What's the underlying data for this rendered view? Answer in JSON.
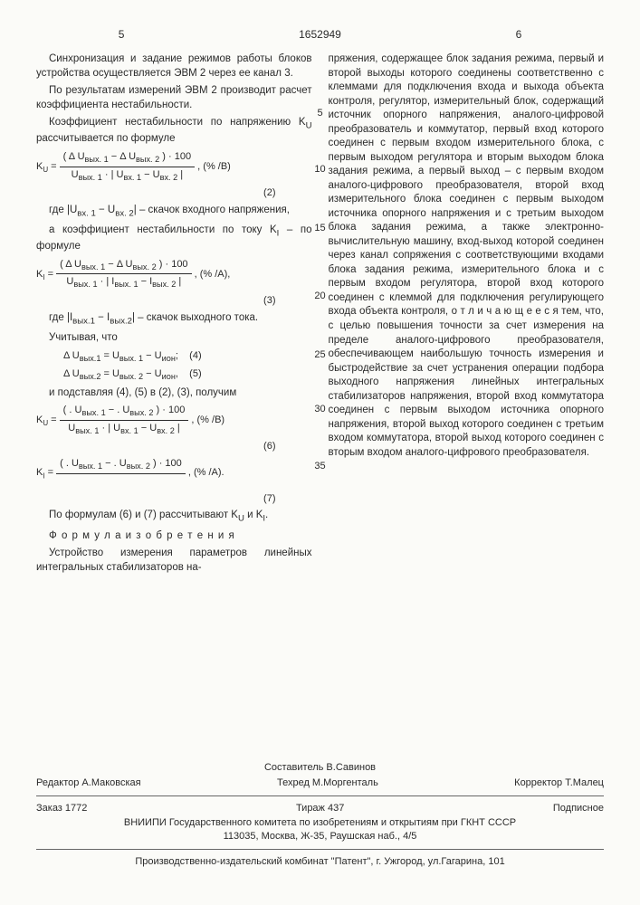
{
  "doc_number": "1652949",
  "col_left_num": "5",
  "col_right_num": "6",
  "line_marks": {
    "l5": "5",
    "l10": "10",
    "l15": "15",
    "l20": "20",
    "l25": "25",
    "l30": "30",
    "l35": "35"
  },
  "left": {
    "p1": "Синхронизация и задание режимов работы блоков устройства осуществляется ЭВМ 2 через ее канал 3.",
    "p2": "По результатам измерений ЭВМ 2 производит расчет коэффициента нестабильности.",
    "p3": "Коэффициент нестабильности по напряжению K<sub>U</sub> рассчитывается по формуле",
    "f2_lhs": "K",
    "f2_sub": "U",
    "f2_eq": " = ",
    "f2_num": "( Δ U<sub>вых. 1</sub> − Δ U<sub>вых. 2</sub> ) · 100",
    "f2_den": "U<sub>вых. 1</sub> · | U<sub>вх. 1</sub> − U<sub>вх. 2</sub> |",
    "f2_tail": " , (% /В)",
    "f2_no": "(2)",
    "p4": "где |U<sub>вх. 1</sub> − U<sub>вх. 2</sub>| – скачок входного напряжения,",
    "p5": "а коэффициент нестабильности по току K<sub>I</sub> – по формуле",
    "f3_sub": "I",
    "f3_num": "( Δ U<sub>вых. 1</sub> − Δ U<sub>вых. 2</sub> ) · 100",
    "f3_den": "U<sub>вых. 1</sub> · | I<sub>вых. 1</sub> − I<sub>вых. 2</sub> |",
    "f3_tail": " , (% /А),",
    "f3_no": "(3)",
    "p6": "где |I<sub>вых.1</sub> − I<sub>вых.2</sub>| – скачок выходного тока.",
    "p7": "Учитывая, что",
    "f4": "Δ U<sub>вых.1</sub> = U<sub>вых. 1</sub> − U<sub>ион</sub>;",
    "f4_no": "(4)",
    "f5": "Δ U<sub>вых.2</sub> = U<sub>вых. 2</sub> − U<sub>ион</sub>,",
    "f5_no": "(5)",
    "p8": "и подставляя (4), (5) в (2), (3), получим",
    "f6_num": "( . U<sub>вых. 1</sub> − . U<sub>вых. 2</sub> ) · 100",
    "f6_den": "U<sub>вых. 1</sub> · | U<sub>вх. 1</sub> − U<sub>вх. 2</sub> |",
    "f6_tail": " , (% /В)",
    "f6_no": "(6)",
    "f7_num": "( . U<sub>вых. 1</sub> − . U<sub>вых. 2</sub> ) · 100",
    "f7_tail": " , (% /А).",
    "f7_no": "(7)",
    "p9": "По формулам (6) и (7) рассчитывают K<sub>U</sub> и K<sub>I</sub>.",
    "p10": "Ф о р м у л а  и з о б р е т е н и я",
    "p11": "Устройство измерения параметров линейных интегральных стабилизаторов на-"
  },
  "right": {
    "p1": "пряжения, содержащее блок задания режима, первый и второй выходы которого соединены соответственно с клеммами для подключения входа и выхода объекта контроля, регулятор, измерительный блок, содержащий источник опорного напряжения, аналого-цифровой преобразователь и коммутатор, первый вход которого соединен с первым входом измерительного блока, с первым выходом регулятора и вторым выходом блока задания режима, а первый выход – с первым входом аналого-цифрового преобразователя, второй вход измерительного блока соединен с первым выходом источника опорного напряжения и с третьим выходом блока задания режима, а также электронно-вычислительную машину, вход-выход которой соединен через канал сопряжения с соответствующими входами блока задания режима, измерительного блока и с первым входом регулятора, второй вход которого соединен с клеммой для подключения регулирующего входа объекта контроля, о т л и ч а ю щ е е с я  тем, что, с целью повышения точности за счет измерения на пределе аналого-цифрового преобразователя, обеспечивающем наибольшую точность измерения и быстродействие за счет устранения операции подбора выходного напряжения линейных интегральных стабилизаторов напряжения, второй вход коммутатора соединен с первым выходом источника опорного напряжения, второй выход которого соединен с третьим входом коммутатора, второй выход которого соединен с вторым входом аналого-цифрового преобразователя."
  },
  "footer": {
    "composer_label": "Составитель",
    "composer": "В.Савинов",
    "editor_label": "Редактор",
    "editor": "А.Маковская",
    "techred_label": "Техред",
    "techred": "М.Моргенталь",
    "corrector_label": "Корректор",
    "corrector": "Т.Малец",
    "order_label": "Заказ",
    "order": "1772",
    "tirazh_label": "Тираж",
    "tirazh": "437",
    "subscription": "Подписное",
    "org1": "ВНИИПИ Государственного комитета по изобретениям и открытиям при ГКНТ СССР",
    "addr1": "113035, Москва, Ж-35, Раушская наб., 4/5",
    "org2": "Производственно-издательский комбинат \"Патент\", г. Ужгород, ул.Гагарина, 101"
  }
}
